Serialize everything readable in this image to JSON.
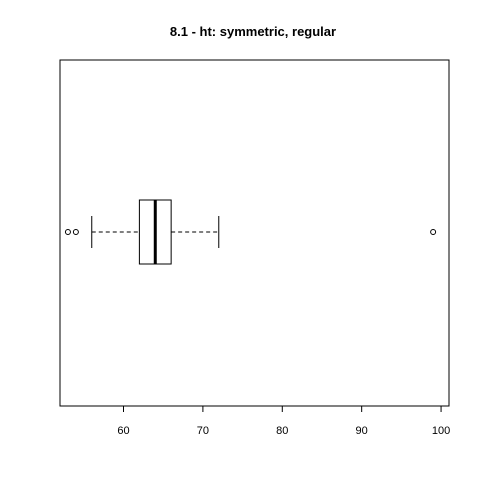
{
  "chart_data": {
    "type": "boxplot",
    "orientation": "horizontal",
    "title": "8.1 - ht: symmetric, regular",
    "xlabel": "",
    "ylabel": "",
    "xlim": [
      52,
      101
    ],
    "x_ticks": [
      60,
      70,
      80,
      90,
      100
    ],
    "grid": false,
    "box": {
      "whisker_low": 56,
      "q1": 62,
      "median": 64,
      "q3": 66,
      "whisker_high": 72
    },
    "outliers": [
      53,
      54,
      99
    ]
  }
}
